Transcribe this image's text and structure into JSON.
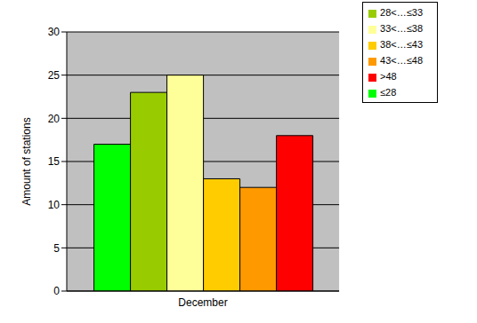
{
  "chart_data": {
    "type": "bar",
    "categories": [
      "December"
    ],
    "y_label": "Amount of stations",
    "series": [
      {
        "name": "≤28",
        "color": "#00ff00",
        "values": [
          17
        ]
      },
      {
        "name": "28<…≤33",
        "color": "#99cc00",
        "values": [
          23
        ]
      },
      {
        "name": "33<…≤38",
        "color": "#ffff99",
        "values": [
          25
        ]
      },
      {
        "name": "38<…≤43",
        "color": "#ffcc00",
        "values": [
          13
        ]
      },
      {
        "name": "43<…≤48",
        "color": "#ff9900",
        "values": [
          12
        ]
      },
      {
        "name": ">48",
        "color": "#ff0000",
        "values": [
          18
        ]
      }
    ],
    "ylim": [
      0,
      30
    ],
    "yticks": [
      0,
      5,
      10,
      15,
      20,
      25,
      30
    ],
    "grid": true,
    "legend": "top-right"
  }
}
